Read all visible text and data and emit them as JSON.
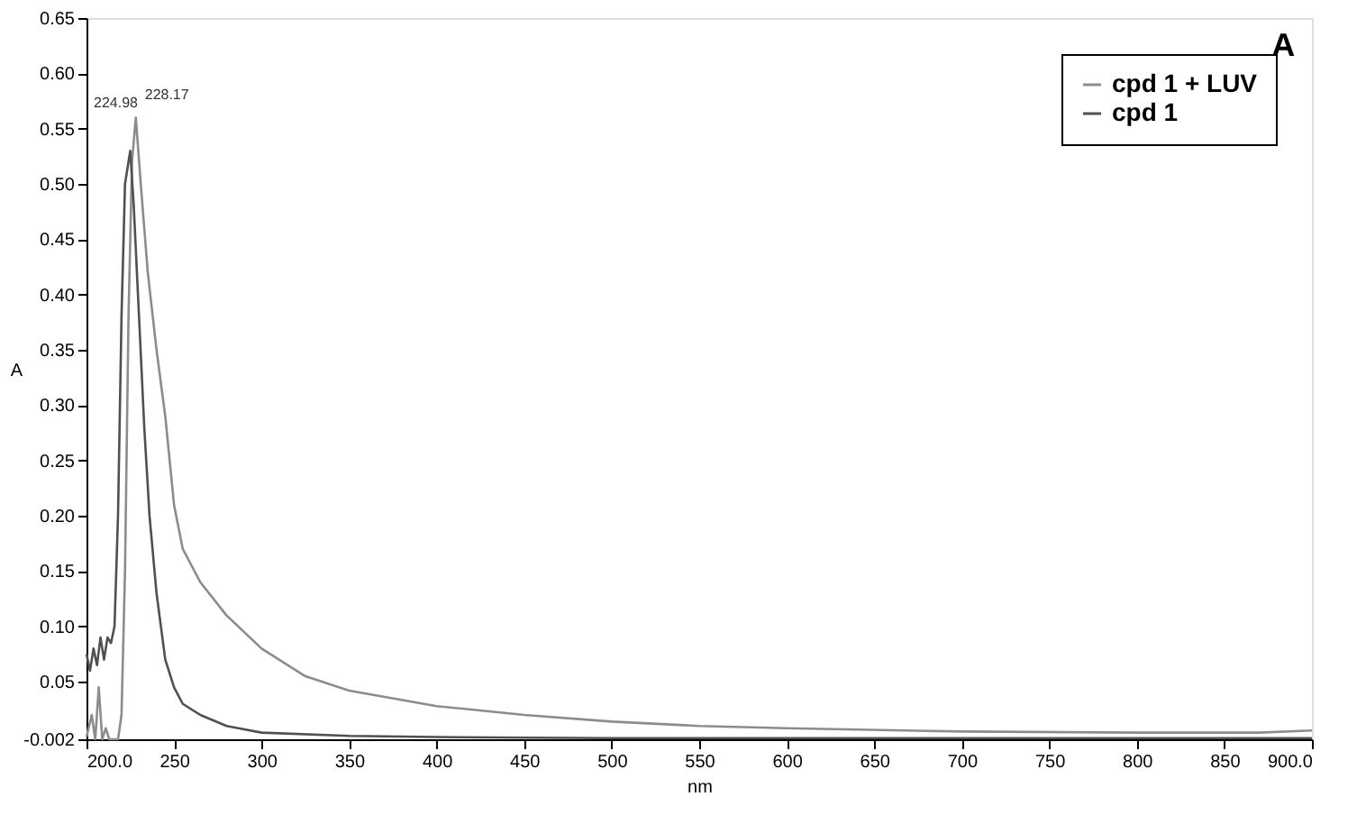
{
  "chart_data": {
    "type": "line",
    "title": "A",
    "xlabel": "nm",
    "ylabel": "A",
    "xlim": [
      200,
      900
    ],
    "ylim": [
      -0.002,
      0.65
    ],
    "xticks": [
      {
        "value": 200,
        "label": "200.0"
      },
      250,
      300,
      350,
      400,
      450,
      500,
      550,
      600,
      650,
      700,
      750,
      800,
      850,
      {
        "value": 900,
        "label": "900.0"
      }
    ],
    "yticks": [
      -0.002,
      0.05,
      {
        "value": 0.1,
        "label": "0.10"
      },
      0.15,
      {
        "value": 0.2,
        "label": "0.20"
      },
      0.25,
      {
        "value": 0.3,
        "label": "0.30"
      },
      0.35,
      {
        "value": 0.4,
        "label": "0.40"
      },
      0.45,
      {
        "value": 0.5,
        "label": "0.50"
      },
      0.55,
      {
        "value": 0.6,
        "label": "0.60"
      },
      0.65
    ],
    "grid": false,
    "legend": "top right",
    "marker": "none",
    "line_style": "solid",
    "annotations": [
      {
        "text": "224.98",
        "x": 224.98,
        "y": 0.53
      },
      {
        "text": "228.17",
        "x": 228.17,
        "y": 0.56
      }
    ],
    "series": [
      {
        "name": "cpd 1 + LUV",
        "color": "#8c8c8c",
        "x": [
          200,
          203,
          205,
          207,
          209,
          211,
          213,
          218,
          220,
          222,
          224,
          226,
          228.17,
          231,
          235,
          240,
          245,
          250,
          255,
          265,
          280,
          300,
          325,
          350,
          400,
          450,
          500,
          550,
          600,
          700,
          800,
          870,
          900
        ],
        "values": [
          0.0,
          0.02,
          -0.002,
          0.045,
          -0.002,
          0.008,
          -0.002,
          -0.002,
          0.02,
          0.15,
          0.38,
          0.52,
          0.56,
          0.5,
          0.42,
          0.35,
          0.29,
          0.21,
          0.17,
          0.14,
          0.11,
          0.08,
          0.055,
          0.042,
          0.028,
          0.02,
          0.014,
          0.01,
          0.008,
          0.005,
          0.004,
          0.004,
          0.006
        ]
      },
      {
        "name": "cpd 1",
        "color": "#505050",
        "x": [
          200,
          202,
          204,
          206,
          208,
          210,
          212,
          214,
          216,
          218,
          220,
          222,
          224.98,
          227,
          230,
          233,
          236,
          240,
          245,
          250,
          255,
          265,
          280,
          300,
          350,
          400,
          500,
          700,
          900
        ],
        "values": [
          0.075,
          0.06,
          0.08,
          0.065,
          0.09,
          0.07,
          0.09,
          0.085,
          0.1,
          0.2,
          0.38,
          0.5,
          0.53,
          0.48,
          0.38,
          0.28,
          0.2,
          0.13,
          0.07,
          0.045,
          0.03,
          0.02,
          0.01,
          0.004,
          0.001,
          0.0,
          -0.001,
          -0.001,
          -0.001
        ]
      }
    ]
  }
}
